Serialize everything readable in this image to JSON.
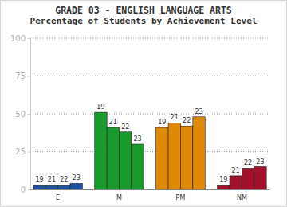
{
  "chart_data": {
    "type": "bar",
    "title": "GRADE 03 - ENGLISH LANGUAGE ARTS",
    "subtitle": "Percentage of Students by Achievement Level",
    "categories": [
      "E",
      "M",
      "PM",
      "NM"
    ],
    "colors": [
      "#1f4f9e",
      "#189a2c",
      "#df8a06",
      "#a2102c"
    ],
    "series": [
      {
        "name": "19",
        "values": [
          3,
          51,
          41,
          3
        ]
      },
      {
        "name": "21",
        "values": [
          3,
          41,
          44,
          9
        ]
      },
      {
        "name": "22",
        "values": [
          3,
          38,
          42,
          14
        ]
      },
      {
        "name": "23",
        "values": [
          4,
          30,
          48,
          15
        ]
      }
    ],
    "ylim": [
      0,
      100
    ],
    "yticks": [
      0,
      25,
      50,
      75,
      100
    ],
    "grid": true
  }
}
